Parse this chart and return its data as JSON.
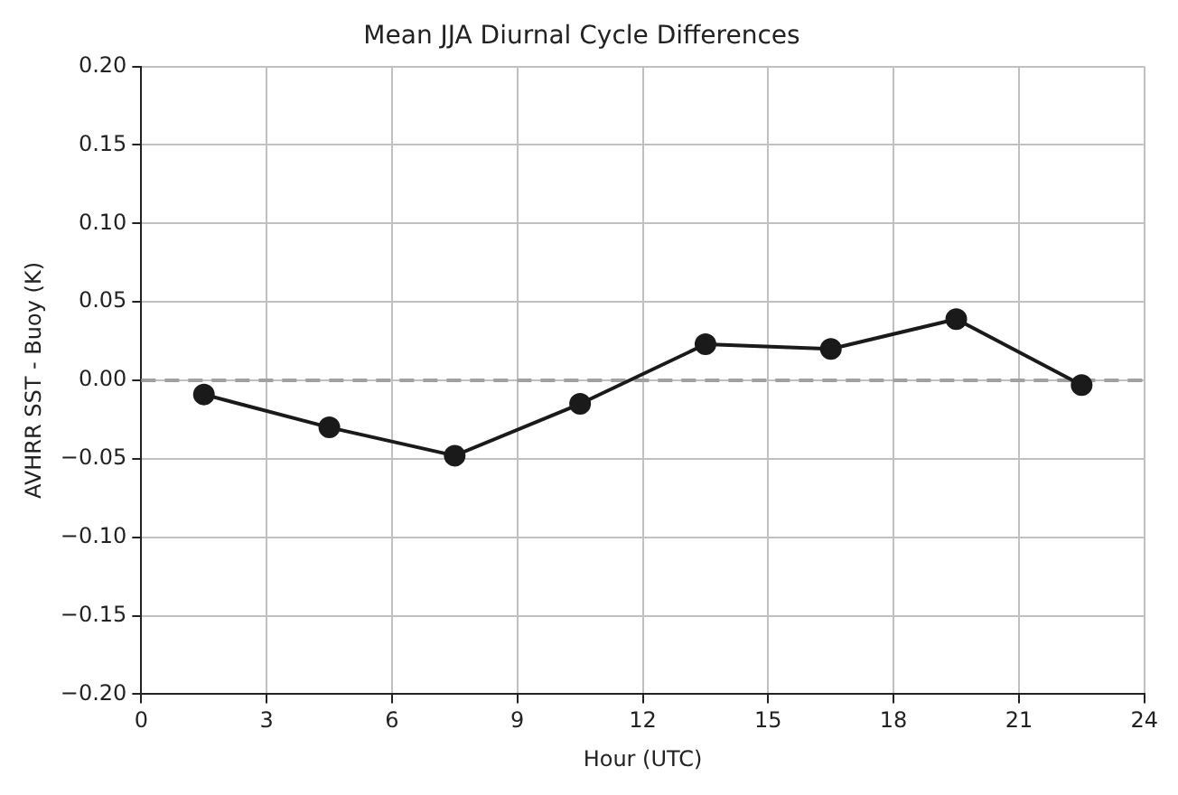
{
  "chart_data": {
    "type": "line",
    "title": "Mean JJA Diurnal Cycle Differences",
    "xlabel": "Hour (UTC)",
    "ylabel": "AVHRR SST - Buoy (K)",
    "x": [
      1.5,
      4.5,
      7.5,
      10.5,
      13.5,
      16.5,
      19.5,
      22.5
    ],
    "series": [
      {
        "color": "#1a1a1a",
        "values": [
          -0.009,
          -0.03,
          -0.048,
          -0.015,
          0.023,
          0.02,
          0.039,
          -0.003
        ]
      }
    ],
    "xlim": [
      0,
      24
    ],
    "xticks": [
      0,
      3,
      6,
      9,
      12,
      15,
      18,
      21,
      24
    ],
    "ylim": [
      -0.2,
      0.2
    ],
    "yticks": [
      {
        "value": -0.2,
        "label": "−0.20"
      },
      {
        "value": -0.15,
        "label": "−0.15"
      },
      {
        "value": -0.1,
        "label": "−0.10"
      },
      {
        "value": -0.05,
        "label": "−0.05"
      },
      {
        "value": 0,
        "label": "0.00"
      },
      {
        "value": 0.05,
        "label": "0.05"
      },
      {
        "value": 0.1,
        "label": "0.10"
      },
      {
        "value": 0.15,
        "label": "0.15"
      },
      {
        "value": 0.2,
        "label": "0.20"
      }
    ],
    "grid": true,
    "marker": "circle",
    "line_style": "solid",
    "legend": false,
    "ref_lines": [
      {
        "axis": "y",
        "value": 0,
        "label": null,
        "color": "#a0a0a0",
        "line_style": "dashed"
      }
    ]
  }
}
